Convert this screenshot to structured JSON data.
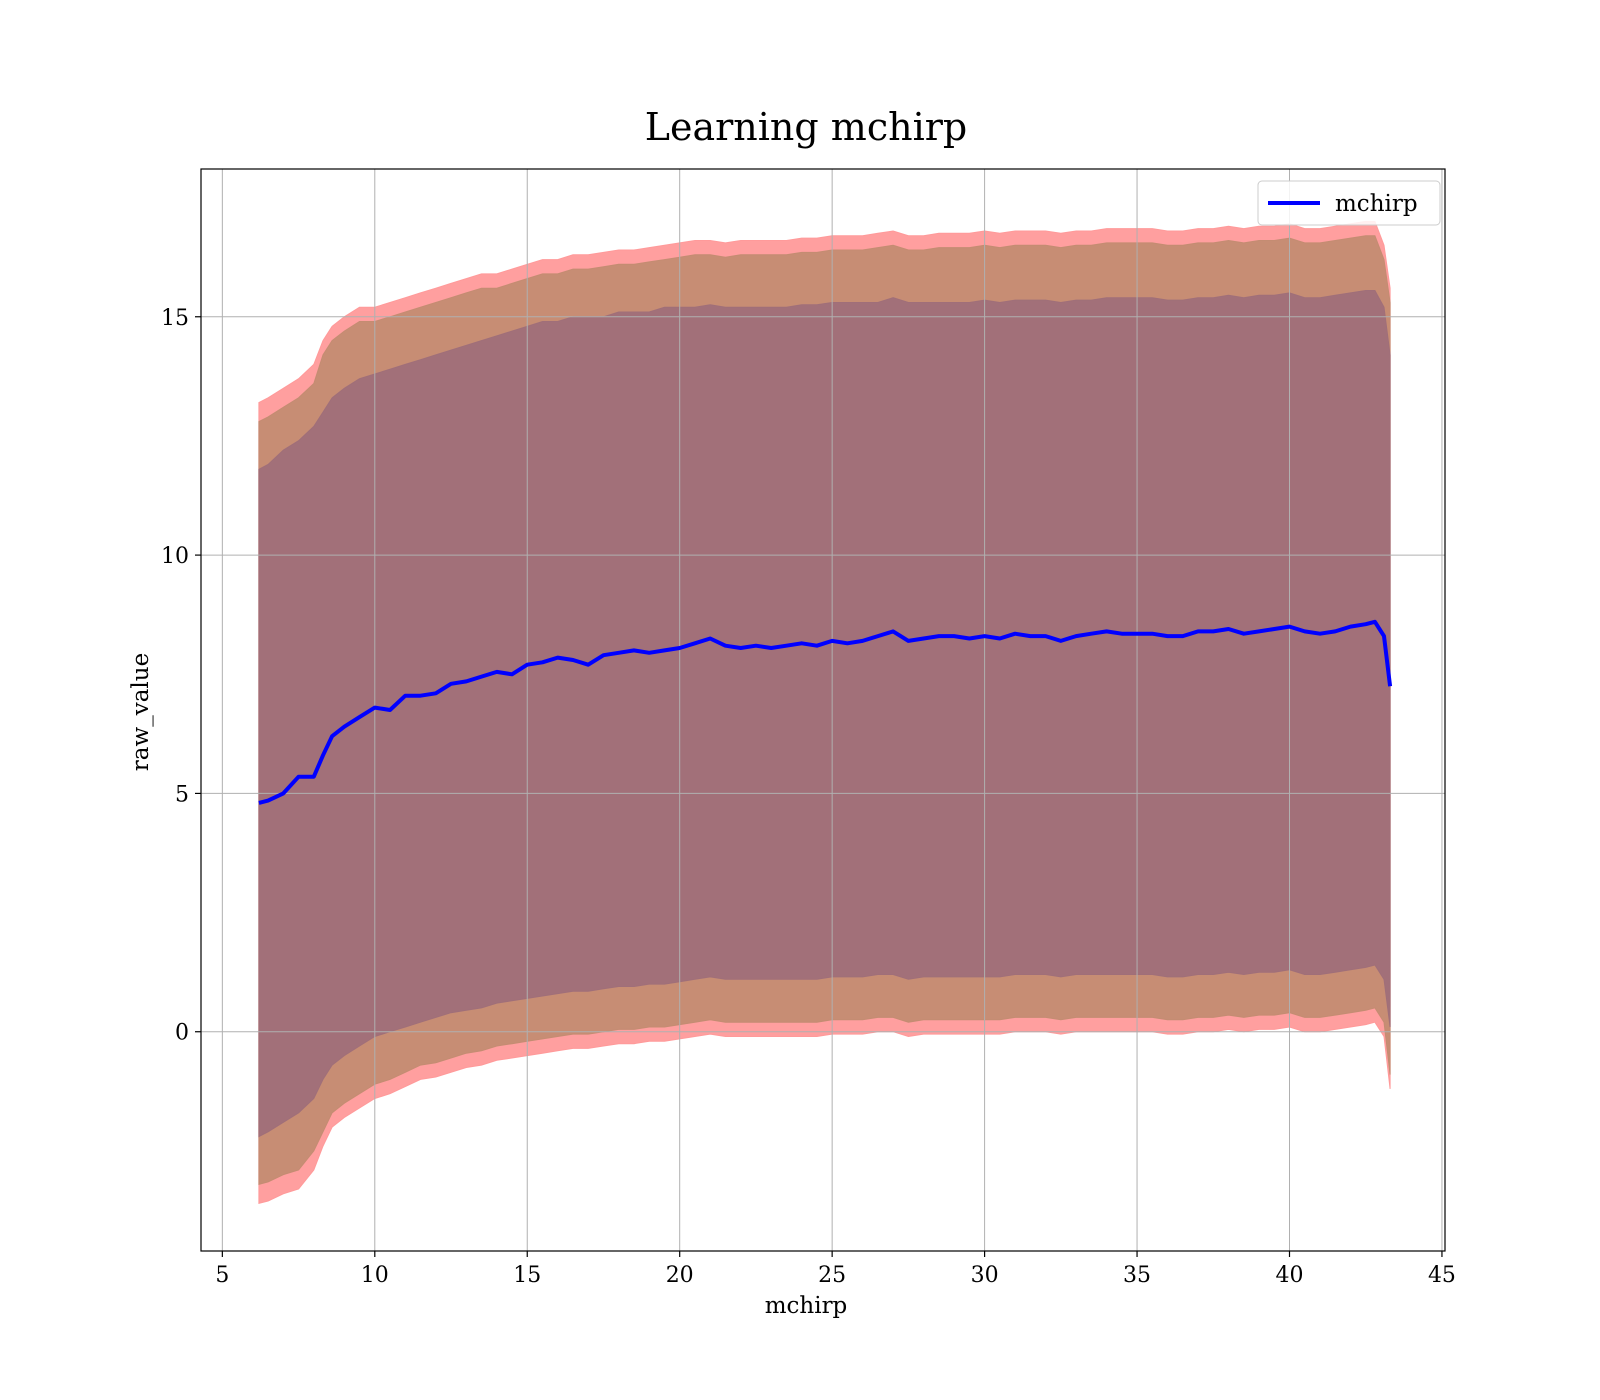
{
  "chart_data": {
    "type": "line",
    "title": "Learning mchirp",
    "xlabel": "mchirp",
    "ylabel": "raw_value",
    "xlim": [
      4.3,
      45.1
    ],
    "ylim": [
      -4.6,
      18.1
    ],
    "xticks": [
      5,
      10,
      15,
      20,
      25,
      30,
      35,
      40,
      45
    ],
    "yticks": [
      0,
      5,
      10,
      15
    ],
    "xtick_labels": [
      "5",
      "10",
      "15",
      "20",
      "25",
      "30",
      "35",
      "40",
      "45"
    ],
    "ytick_labels": [
      "0",
      "5",
      "10",
      "15"
    ],
    "grid": true,
    "legend_position": "top-right",
    "colors": {
      "line": "#0000ff",
      "band_outer": "#ff9a9a",
      "band_middle": "#c48c72",
      "band_inner": "#a06f79",
      "grid": "#b0b0b0"
    },
    "x": [
      6.2,
      6.5,
      7.0,
      7.5,
      8.0,
      8.3,
      8.6,
      9.0,
      9.5,
      10.0,
      10.5,
      11.0,
      11.5,
      12.0,
      12.5,
      13.0,
      13.5,
      14.0,
      14.5,
      15.0,
      15.5,
      16.0,
      16.5,
      17.0,
      17.5,
      18.0,
      18.5,
      19.0,
      19.5,
      20.0,
      20.5,
      21.0,
      21.5,
      22.0,
      22.5,
      23.0,
      23.5,
      24.0,
      24.5,
      25.0,
      25.5,
      26.0,
      26.5,
      27.0,
      27.5,
      28.0,
      28.5,
      29.0,
      29.5,
      30.0,
      30.5,
      31.0,
      31.5,
      32.0,
      32.5,
      33.0,
      33.5,
      34.0,
      34.5,
      35.0,
      35.5,
      36.0,
      36.5,
      37.0,
      37.5,
      38.0,
      38.5,
      39.0,
      39.5,
      40.0,
      40.5,
      41.0,
      41.5,
      42.0,
      42.5,
      42.8,
      43.1,
      43.3
    ],
    "series": [
      {
        "name": "mchirp",
        "values": [
          4.8,
          4.85,
          5.0,
          5.35,
          5.35,
          5.8,
          6.2,
          6.4,
          6.6,
          6.8,
          6.75,
          7.05,
          7.05,
          7.1,
          7.3,
          7.35,
          7.45,
          7.55,
          7.5,
          7.7,
          7.75,
          7.85,
          7.8,
          7.7,
          7.9,
          7.95,
          8.0,
          7.95,
          8.0,
          8.05,
          8.15,
          8.25,
          8.1,
          8.05,
          8.1,
          8.05,
          8.1,
          8.15,
          8.1,
          8.2,
          8.15,
          8.2,
          8.3,
          8.4,
          8.2,
          8.25,
          8.3,
          8.3,
          8.25,
          8.3,
          8.25,
          8.35,
          8.3,
          8.3,
          8.2,
          8.3,
          8.35,
          8.4,
          8.35,
          8.35,
          8.35,
          8.3,
          8.3,
          8.4,
          8.4,
          8.45,
          8.35,
          8.4,
          8.45,
          8.5,
          8.4,
          8.35,
          8.4,
          8.5,
          8.55,
          8.6,
          8.3,
          7.25
        ]
      }
    ],
    "bands": [
      {
        "upper": [
          13.2,
          13.3,
          13.5,
          13.7,
          14.0,
          14.5,
          14.8,
          15.0,
          15.2,
          15.2,
          15.3,
          15.4,
          15.5,
          15.6,
          15.7,
          15.8,
          15.9,
          15.9,
          16.0,
          16.1,
          16.2,
          16.2,
          16.3,
          16.3,
          16.35,
          16.4,
          16.4,
          16.45,
          16.5,
          16.55,
          16.6,
          16.6,
          16.55,
          16.6,
          16.6,
          16.6,
          16.6,
          16.65,
          16.65,
          16.7,
          16.7,
          16.7,
          16.75,
          16.8,
          16.7,
          16.7,
          16.75,
          16.75,
          16.75,
          16.8,
          16.75,
          16.8,
          16.8,
          16.8,
          16.75,
          16.8,
          16.8,
          16.85,
          16.85,
          16.85,
          16.85,
          16.8,
          16.8,
          16.85,
          16.85,
          16.9,
          16.85,
          16.9,
          16.9,
          16.95,
          16.85,
          16.85,
          16.9,
          16.95,
          17.0,
          17.0,
          16.5,
          15.6
        ],
        "lower": [
          -3.6,
          -3.55,
          -3.4,
          -3.3,
          -2.9,
          -2.4,
          -2.0,
          -1.8,
          -1.6,
          -1.4,
          -1.3,
          -1.15,
          -1.0,
          -0.95,
          -0.85,
          -0.75,
          -0.7,
          -0.6,
          -0.55,
          -0.5,
          -0.45,
          -0.4,
          -0.35,
          -0.35,
          -0.3,
          -0.25,
          -0.25,
          -0.2,
          -0.2,
          -0.15,
          -0.1,
          -0.05,
          -0.1,
          -0.1,
          -0.1,
          -0.1,
          -0.1,
          -0.1,
          -0.1,
          -0.05,
          -0.05,
          -0.05,
          0.0,
          0.0,
          -0.1,
          -0.05,
          -0.05,
          -0.05,
          -0.05,
          -0.05,
          -0.05,
          0.0,
          0.0,
          0.0,
          -0.05,
          0.0,
          0.0,
          0.0,
          0.0,
          0.0,
          0.0,
          -0.05,
          -0.05,
          0.0,
          0.0,
          0.05,
          0.0,
          0.05,
          0.05,
          0.1,
          0.0,
          0.0,
          0.05,
          0.1,
          0.15,
          0.2,
          -0.1,
          -1.2
        ]
      },
      {
        "upper": [
          12.8,
          12.9,
          13.1,
          13.3,
          13.6,
          14.2,
          14.5,
          14.7,
          14.9,
          14.9,
          15.0,
          15.1,
          15.2,
          15.3,
          15.4,
          15.5,
          15.6,
          15.6,
          15.7,
          15.8,
          15.9,
          15.9,
          16.0,
          16.0,
          16.05,
          16.1,
          16.1,
          16.15,
          16.2,
          16.25,
          16.3,
          16.3,
          16.25,
          16.3,
          16.3,
          16.3,
          16.3,
          16.35,
          16.35,
          16.4,
          16.4,
          16.4,
          16.45,
          16.5,
          16.4,
          16.4,
          16.45,
          16.45,
          16.45,
          16.5,
          16.45,
          16.5,
          16.5,
          16.5,
          16.45,
          16.5,
          16.5,
          16.55,
          16.55,
          16.55,
          16.55,
          16.5,
          16.5,
          16.55,
          16.55,
          16.6,
          16.55,
          16.6,
          16.6,
          16.65,
          16.55,
          16.55,
          16.6,
          16.65,
          16.7,
          16.7,
          16.2,
          15.3
        ],
        "lower": [
          -3.2,
          -3.15,
          -3.0,
          -2.9,
          -2.5,
          -2.1,
          -1.7,
          -1.5,
          -1.3,
          -1.1,
          -1.0,
          -0.85,
          -0.7,
          -0.65,
          -0.55,
          -0.45,
          -0.4,
          -0.3,
          -0.25,
          -0.2,
          -0.15,
          -0.1,
          -0.05,
          -0.05,
          0.0,
          0.05,
          0.05,
          0.1,
          0.1,
          0.15,
          0.2,
          0.25,
          0.2,
          0.2,
          0.2,
          0.2,
          0.2,
          0.2,
          0.2,
          0.25,
          0.25,
          0.25,
          0.3,
          0.3,
          0.2,
          0.25,
          0.25,
          0.25,
          0.25,
          0.25,
          0.25,
          0.3,
          0.3,
          0.3,
          0.25,
          0.3,
          0.3,
          0.3,
          0.3,
          0.3,
          0.3,
          0.25,
          0.25,
          0.3,
          0.3,
          0.35,
          0.3,
          0.35,
          0.35,
          0.4,
          0.3,
          0.3,
          0.35,
          0.4,
          0.45,
          0.5,
          0.2,
          -0.9
        ]
      },
      {
        "upper": [
          11.8,
          11.9,
          12.2,
          12.4,
          12.7,
          13.0,
          13.3,
          13.5,
          13.7,
          13.8,
          13.9,
          14.0,
          14.1,
          14.2,
          14.3,
          14.4,
          14.5,
          14.6,
          14.7,
          14.8,
          14.9,
          14.9,
          15.0,
          15.0,
          15.0,
          15.1,
          15.1,
          15.1,
          15.2,
          15.2,
          15.2,
          15.25,
          15.2,
          15.2,
          15.2,
          15.2,
          15.2,
          15.25,
          15.25,
          15.3,
          15.3,
          15.3,
          15.3,
          15.4,
          15.3,
          15.3,
          15.3,
          15.3,
          15.3,
          15.35,
          15.3,
          15.35,
          15.35,
          15.35,
          15.3,
          15.35,
          15.35,
          15.4,
          15.4,
          15.4,
          15.4,
          15.35,
          15.35,
          15.4,
          15.4,
          15.45,
          15.4,
          15.45,
          15.45,
          15.5,
          15.4,
          15.4,
          15.45,
          15.5,
          15.55,
          15.55,
          15.2,
          14.2
        ],
        "lower": [
          -2.2,
          -2.1,
          -1.9,
          -1.7,
          -1.4,
          -1.0,
          -0.7,
          -0.5,
          -0.3,
          -0.1,
          0.0,
          0.1,
          0.2,
          0.3,
          0.4,
          0.45,
          0.5,
          0.6,
          0.65,
          0.7,
          0.75,
          0.8,
          0.85,
          0.85,
          0.9,
          0.95,
          0.95,
          1.0,
          1.0,
          1.05,
          1.1,
          1.15,
          1.1,
          1.1,
          1.1,
          1.1,
          1.1,
          1.1,
          1.1,
          1.15,
          1.15,
          1.15,
          1.2,
          1.2,
          1.1,
          1.15,
          1.15,
          1.15,
          1.15,
          1.15,
          1.15,
          1.2,
          1.2,
          1.2,
          1.15,
          1.2,
          1.2,
          1.2,
          1.2,
          1.2,
          1.2,
          1.15,
          1.15,
          1.2,
          1.2,
          1.25,
          1.2,
          1.25,
          1.25,
          1.3,
          1.2,
          1.2,
          1.25,
          1.3,
          1.35,
          1.4,
          1.1,
          0.1
        ]
      }
    ]
  }
}
